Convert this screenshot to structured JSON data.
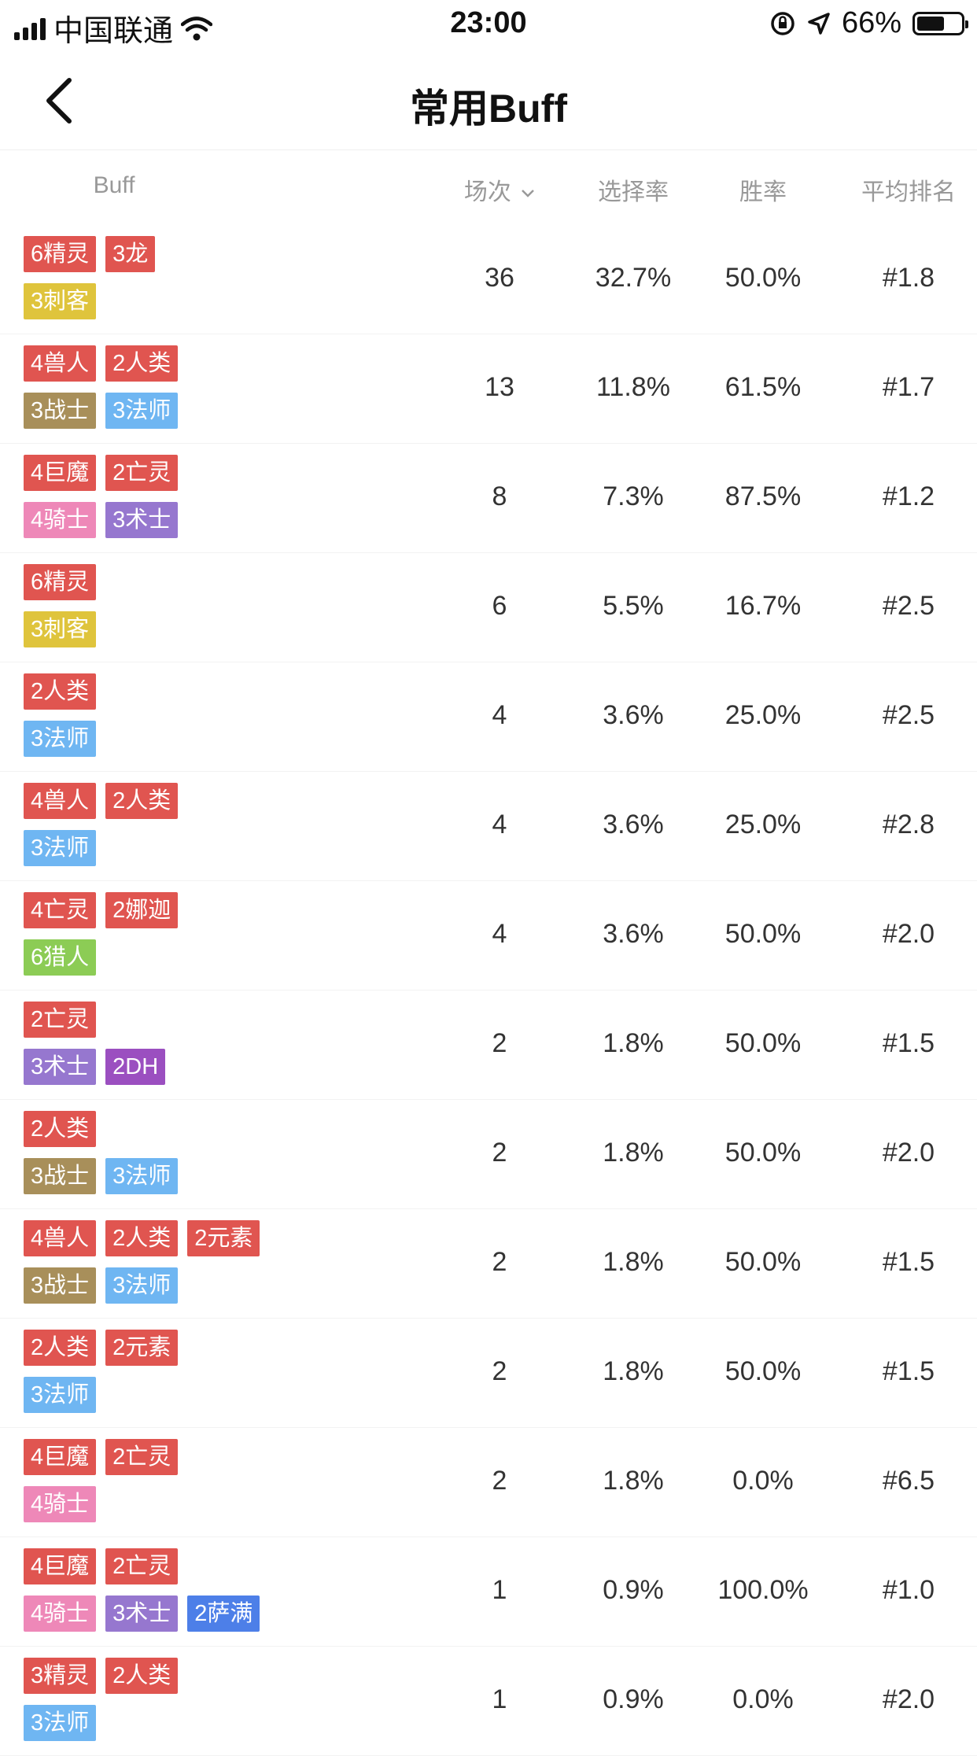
{
  "status_bar": {
    "carrier": "中国联通",
    "time": "23:00",
    "battery": "66%"
  },
  "nav": {
    "title": "常用Buff"
  },
  "columns": {
    "buff": "Buff",
    "games": "场次",
    "pick_rate": "选择率",
    "win_rate": "胜率",
    "avg_rank": "平均排名"
  },
  "colors": {
    "red": "#e05550",
    "yellow": "#dfc43c",
    "brown": "#a88f5a",
    "lightblue": "#6fb6f2",
    "pink": "#ee88b8",
    "purple": "#9677cf",
    "green": "#8ccc55",
    "violet": "#9b4fc0",
    "blue": "#4d7fe8"
  },
  "rows": [
    {
      "tags": [
        [
          [
            "6精灵",
            "red"
          ],
          [
            "3龙",
            "red"
          ]
        ],
        [
          [
            "3刺客",
            "yellow"
          ]
        ]
      ],
      "games": "36",
      "pick": "32.7%",
      "win": "50.0%",
      "rank": "#1.8"
    },
    {
      "tags": [
        [
          [
            "4兽人",
            "red"
          ],
          [
            "2人类",
            "red"
          ]
        ],
        [
          [
            "3战士",
            "brown"
          ],
          [
            "3法师",
            "lightblue"
          ]
        ]
      ],
      "games": "13",
      "pick": "11.8%",
      "win": "61.5%",
      "rank": "#1.7"
    },
    {
      "tags": [
        [
          [
            "4巨魔",
            "red"
          ],
          [
            "2亡灵",
            "red"
          ]
        ],
        [
          [
            "4骑士",
            "pink"
          ],
          [
            "3术士",
            "purple"
          ]
        ]
      ],
      "games": "8",
      "pick": "7.3%",
      "win": "87.5%",
      "rank": "#1.2"
    },
    {
      "tags": [
        [
          [
            "6精灵",
            "red"
          ]
        ],
        [
          [
            "3刺客",
            "yellow"
          ]
        ]
      ],
      "games": "6",
      "pick": "5.5%",
      "win": "16.7%",
      "rank": "#2.5"
    },
    {
      "tags": [
        [
          [
            "2人类",
            "red"
          ]
        ],
        [
          [
            "3法师",
            "lightblue"
          ]
        ]
      ],
      "games": "4",
      "pick": "3.6%",
      "win": "25.0%",
      "rank": "#2.5"
    },
    {
      "tags": [
        [
          [
            "4兽人",
            "red"
          ],
          [
            "2人类",
            "red"
          ]
        ],
        [
          [
            "3法师",
            "lightblue"
          ]
        ]
      ],
      "games": "4",
      "pick": "3.6%",
      "win": "25.0%",
      "rank": "#2.8"
    },
    {
      "tags": [
        [
          [
            "4亡灵",
            "red"
          ],
          [
            "2娜迦",
            "red"
          ]
        ],
        [
          [
            "6猎人",
            "green"
          ]
        ]
      ],
      "games": "4",
      "pick": "3.6%",
      "win": "50.0%",
      "rank": "#2.0"
    },
    {
      "tags": [
        [
          [
            "2亡灵",
            "red"
          ]
        ],
        [
          [
            "3术士",
            "purple"
          ],
          [
            "2DH",
            "violet"
          ]
        ]
      ],
      "games": "2",
      "pick": "1.8%",
      "win": "50.0%",
      "rank": "#1.5"
    },
    {
      "tags": [
        [
          [
            "2人类",
            "red"
          ]
        ],
        [
          [
            "3战士",
            "brown"
          ],
          [
            "3法师",
            "lightblue"
          ]
        ]
      ],
      "games": "2",
      "pick": "1.8%",
      "win": "50.0%",
      "rank": "#2.0"
    },
    {
      "tags": [
        [
          [
            "4兽人",
            "red"
          ],
          [
            "2人类",
            "red"
          ],
          [
            "2元素",
            "red"
          ]
        ],
        [
          [
            "3战士",
            "brown"
          ],
          [
            "3法师",
            "lightblue"
          ]
        ]
      ],
      "games": "2",
      "pick": "1.8%",
      "win": "50.0%",
      "rank": "#1.5"
    },
    {
      "tags": [
        [
          [
            "2人类",
            "red"
          ],
          [
            "2元素",
            "red"
          ]
        ],
        [
          [
            "3法师",
            "lightblue"
          ]
        ]
      ],
      "games": "2",
      "pick": "1.8%",
      "win": "50.0%",
      "rank": "#1.5"
    },
    {
      "tags": [
        [
          [
            "4巨魔",
            "red"
          ],
          [
            "2亡灵",
            "red"
          ]
        ],
        [
          [
            "4骑士",
            "pink"
          ]
        ]
      ],
      "games": "2",
      "pick": "1.8%",
      "win": "0.0%",
      "rank": "#6.5"
    },
    {
      "tags": [
        [
          [
            "4巨魔",
            "red"
          ],
          [
            "2亡灵",
            "red"
          ]
        ],
        [
          [
            "4骑士",
            "pink"
          ],
          [
            "3术士",
            "purple"
          ],
          [
            "2萨满",
            "blue"
          ]
        ]
      ],
      "games": "1",
      "pick": "0.9%",
      "win": "100.0%",
      "rank": "#1.0"
    },
    {
      "tags": [
        [
          [
            "3精灵",
            "red"
          ],
          [
            "2人类",
            "red"
          ]
        ],
        [
          [
            "3法师",
            "lightblue"
          ]
        ]
      ],
      "games": "1",
      "pick": "0.9%",
      "win": "0.0%",
      "rank": "#2.0"
    }
  ]
}
